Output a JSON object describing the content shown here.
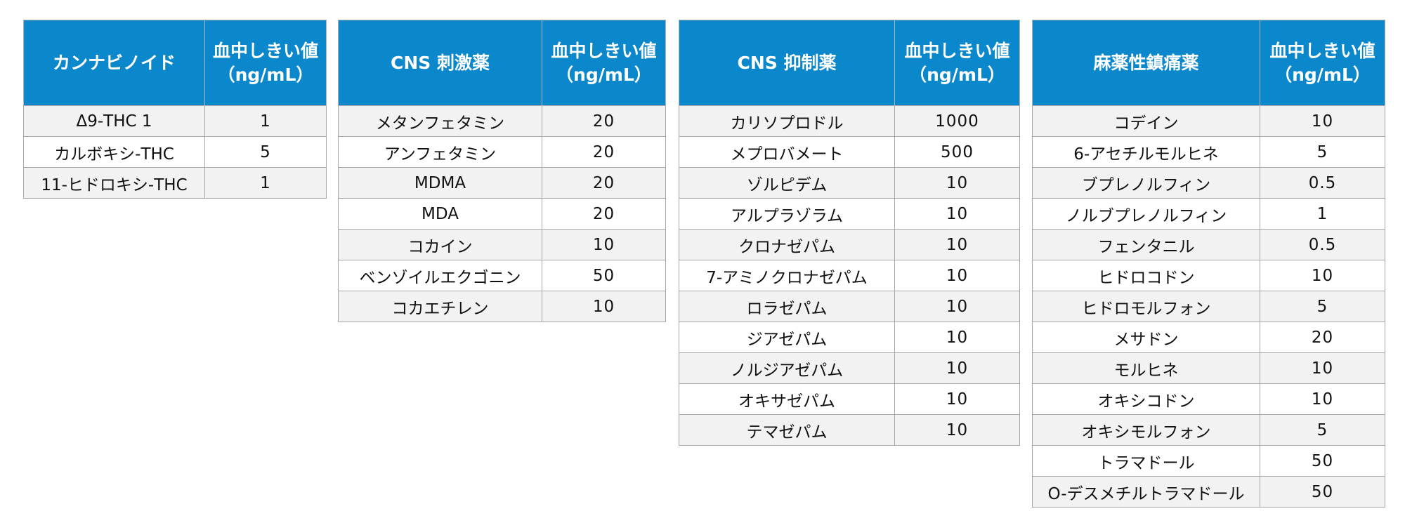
{
  "tables": [
    {
      "category_header": "カンナビノイド",
      "threshold_header_line1": "血中しきい値",
      "threshold_header_line2": "（ng/mL）",
      "rows": [
        {
          "drug": "Δ9-THC 1",
          "threshold": "1"
        },
        {
          "drug": "カルボキシ-THC",
          "threshold": "5"
        },
        {
          "drug": "11-ヒドロキシ-THC",
          "threshold": "1"
        }
      ]
    },
    {
      "category_header": "CNS 刺激薬",
      "threshold_header_line1": "血中しきい値",
      "threshold_header_line2": "（ng/mL）",
      "rows": [
        {
          "drug": "メタンフェタミン",
          "threshold": "20"
        },
        {
          "drug": "アンフェタミン",
          "threshold": "20"
        },
        {
          "drug": "MDMA",
          "threshold": "20"
        },
        {
          "drug": "MDA",
          "threshold": "20"
        },
        {
          "drug": "コカイン",
          "threshold": "10"
        },
        {
          "drug": "ベンゾイルエクゴニン",
          "threshold": "50"
        },
        {
          "drug": "コカエチレン",
          "threshold": "10"
        }
      ]
    },
    {
      "category_header": "CNS 抑制薬",
      "threshold_header_line1": "血中しきい値",
      "threshold_header_line2": "（ng/mL）",
      "rows": [
        {
          "drug": "カリソプロドル",
          "threshold": "1000"
        },
        {
          "drug": "メプロバメート",
          "threshold": "500"
        },
        {
          "drug": "ゾルピデム",
          "threshold": "10"
        },
        {
          "drug": "アルプラゾラム",
          "threshold": "10"
        },
        {
          "drug": "クロナゼパム",
          "threshold": "10"
        },
        {
          "drug": "7-アミノクロナゼパム",
          "threshold": "10"
        },
        {
          "drug": "ロラゼパム",
          "threshold": "10"
        },
        {
          "drug": "ジアゼパム",
          "threshold": "10"
        },
        {
          "drug": "ノルジアゼパム",
          "threshold": "10"
        },
        {
          "drug": "オキサゼパム",
          "threshold": "10"
        },
        {
          "drug": "テマゼパム",
          "threshold": "10"
        }
      ]
    },
    {
      "category_header": "麻薬性鎮痛薬",
      "threshold_header_line1": "血中しきい値",
      "threshold_header_line2": "（ng/mL）",
      "rows": [
        {
          "drug": "コデイン",
          "threshold": "10"
        },
        {
          "drug": "6-アセチルモルヒネ",
          "threshold": "5"
        },
        {
          "drug": "ブプレノルフィン",
          "threshold": "0.5"
        },
        {
          "drug": "ノルブプレノルフィン",
          "threshold": "1"
        },
        {
          "drug": "フェンタニル",
          "threshold": "0.5"
        },
        {
          "drug": "ヒドロコドン",
          "threshold": "10"
        },
        {
          "drug": "ヒドロモルフォン",
          "threshold": "5"
        },
        {
          "drug": "メサドン",
          "threshold": "20"
        },
        {
          "drug": "モルヒネ",
          "threshold": "10"
        },
        {
          "drug": "オキシコドン",
          "threshold": "10"
        },
        {
          "drug": "オキシモルフォン",
          "threshold": "5"
        },
        {
          "drug": "トラマドール",
          "threshold": "50"
        },
        {
          "drug": "O-デスメチルトラマドール",
          "threshold": "50"
        }
      ]
    }
  ],
  "colors": {
    "header_background": "#0b87cc",
    "header_text": "#ffffff",
    "row_shaded": "#f2f2f3",
    "row_plain": "#ffffff",
    "border": "#a6a6a6"
  }
}
